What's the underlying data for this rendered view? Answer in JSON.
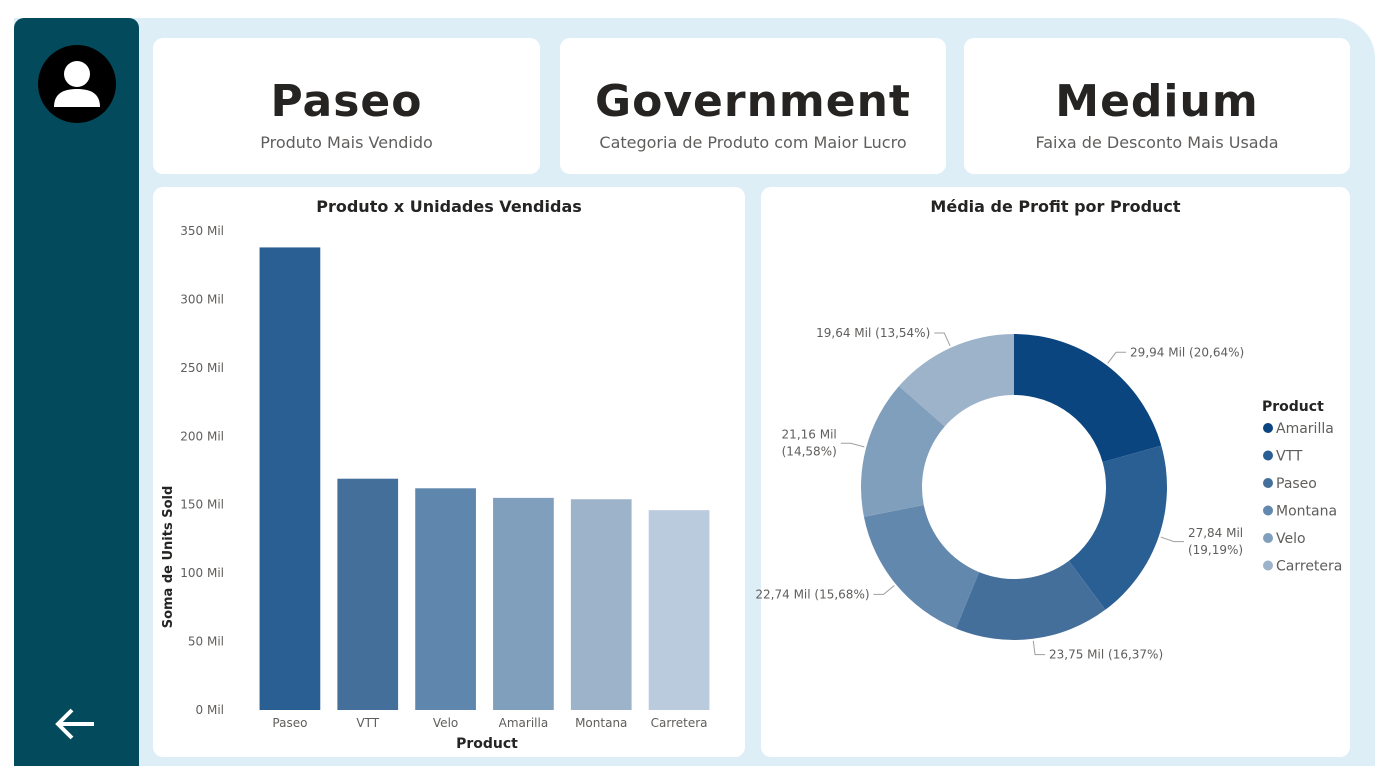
{
  "sidebar": {
    "avatar_icon": "user-icon",
    "back_icon": "arrow-left-icon"
  },
  "kpis": [
    {
      "value": "Paseo",
      "label": "Produto Mais Vendido"
    },
    {
      "value": "Government",
      "label": "Categoria de Produto com Maior Lucro"
    },
    {
      "value": "Medium",
      "label": "Faixa de Desconto Mais Usada"
    }
  ],
  "colors": {
    "sidebar": "#034b5c",
    "background": "#ddeef6",
    "bars": [
      "#2a5f94",
      "#456f9b",
      "#5f86ad",
      "#809fbd",
      "#9db3ca",
      "#b9cbdc"
    ],
    "donut": [
      "#0a4580",
      "#2a5f94",
      "#456f9b",
      "#6388ae",
      "#809fbd",
      "#9db3ca"
    ]
  },
  "chart_data": [
    {
      "type": "bar",
      "title": "Produto x Unidades Vendidas",
      "xlabel": "Product",
      "ylabel": "Soma de Units Sold",
      "categories": [
        "Paseo",
        "VTT",
        "Velo",
        "Amarilla",
        "Montana",
        "Carretera"
      ],
      "values": [
        338,
        169,
        162,
        155,
        154,
        146
      ],
      "ylim": [
        0,
        350
      ],
      "yticks": [
        0,
        50,
        100,
        150,
        200,
        250,
        300,
        350
      ],
      "ytick_labels": [
        "0 Mil",
        "50 Mil",
        "100 Mil",
        "150 Mil",
        "200 Mil",
        "250 Mil",
        "300 Mil",
        "350 Mil"
      ],
      "unit": "Mil",
      "grid": false
    },
    {
      "type": "pie",
      "donut": true,
      "title": "Média de Profit por Product",
      "legend_title": "Product",
      "legend_position": "right",
      "categories": [
        "Amarilla",
        "VTT",
        "Paseo",
        "Montana",
        "Velo",
        "Carretera"
      ],
      "values": [
        29.94,
        27.84,
        23.75,
        22.74,
        21.16,
        19.64
      ],
      "percentages": [
        20.64,
        19.19,
        16.37,
        15.68,
        14.58,
        13.54
      ],
      "data_labels": [
        [
          "29,94 Mil (20,64%)"
        ],
        [
          "27,84 Mil",
          "(19,19%)"
        ],
        [
          "23,75 Mil (16,37%)"
        ],
        [
          "22,74 Mil (15,68%)"
        ],
        [
          "21,16 Mil",
          "(14,58%)"
        ],
        [
          "19,64 Mil (13,54%)"
        ]
      ]
    }
  ]
}
